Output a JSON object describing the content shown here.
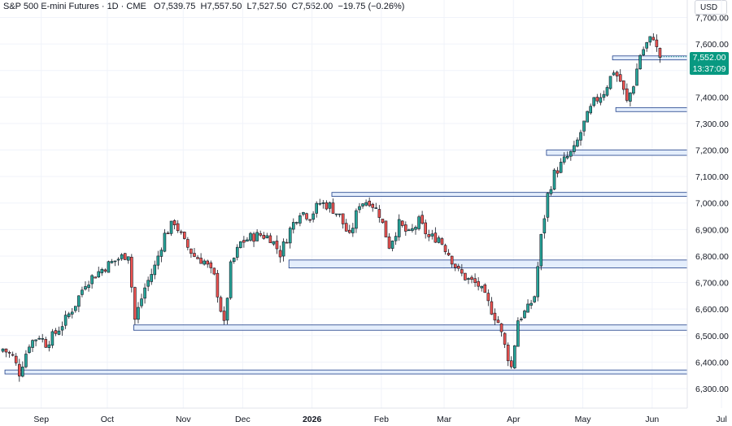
{
  "header": {
    "symbol": "S&P 500 E-mini Futures · 1D · CME",
    "open_key": "O",
    "open": "7,539.75",
    "high_key": "H",
    "high": "7,557.50",
    "low_key": "L",
    "low": "7,527.50",
    "close_key": "C",
    "close": "7,552.00",
    "change": "−19.75 (−0.26%)"
  },
  "currency": "USD",
  "last_price": {
    "value": "7,552.00",
    "countdown": "13:37:09"
  },
  "colors": {
    "up": "#089981",
    "up_body": "#089981",
    "down": "#f23645",
    "candle_up_fill": "#26a69a",
    "candle_down_fill": "#ef5350",
    "zone_fill": "#dbe8fb",
    "zone_stroke": "#1e3f8a",
    "grid": "#f0f3fa"
  },
  "chart_data": {
    "type": "candlestick",
    "ylim": [
      6260,
      7720
    ],
    "yticks": [
      6300,
      6400,
      6500,
      6600,
      6700,
      6800,
      6900,
      7000,
      7100,
      7200,
      7300,
      7400,
      7500,
      7600,
      7700
    ],
    "ytick_labels": [
      "6,300.00",
      "6,400.00",
      "6,500.00",
      "6,600.00",
      "6,700.00",
      "6,800.00",
      "6,900.00",
      "7,000.00",
      "7,100.00",
      "7,200.00",
      "7,300.00",
      "7,400.00",
      "7,500.00",
      "7,600.00",
      "7,700.00"
    ],
    "xticks": [
      {
        "label": "Sep",
        "bar": 12,
        "bold": false
      },
      {
        "label": "Oct",
        "bar": 32,
        "bold": false
      },
      {
        "label": "Nov",
        "bar": 55,
        "bold": false
      },
      {
        "label": "Dec",
        "bar": 73,
        "bold": false
      },
      {
        "label": "2026",
        "bar": 94,
        "bold": true
      },
      {
        "label": "Feb",
        "bar": 115,
        "bold": false
      },
      {
        "label": "Mar",
        "bar": 134,
        "bold": false
      },
      {
        "label": "Apr",
        "bar": 155,
        "bold": false
      },
      {
        "label": "May",
        "bar": 176,
        "bold": false
      },
      {
        "label": "Jun",
        "bar": 197,
        "bold": false
      },
      {
        "label": "Jul",
        "bar": 218,
        "bold": false
      }
    ],
    "bar_count_span": 220,
    "anchors": [
      [
        0,
        6450
      ],
      [
        3,
        6420
      ],
      [
        5,
        6360
      ],
      [
        8,
        6470
      ],
      [
        11,
        6500
      ],
      [
        13,
        6470
      ],
      [
        16,
        6510
      ],
      [
        19,
        6560
      ],
      [
        22,
        6620
      ],
      [
        25,
        6700
      ],
      [
        28,
        6730
      ],
      [
        31,
        6760
      ],
      [
        35,
        6790
      ],
      [
        38,
        6810
      ],
      [
        40,
        6560
      ],
      [
        43,
        6680
      ],
      [
        46,
        6760
      ],
      [
        49,
        6880
      ],
      [
        52,
        6930
      ],
      [
        55,
        6850
      ],
      [
        58,
        6800
      ],
      [
        61,
        6780
      ],
      [
        64,
        6720
      ],
      [
        67,
        6540
      ],
      [
        69,
        6760
      ],
      [
        72,
        6850
      ],
      [
        75,
        6870
      ],
      [
        78,
        6880
      ],
      [
        81,
        6870
      ],
      [
        84,
        6810
      ],
      [
        87,
        6900
      ],
      [
        90,
        6970
      ],
      [
        93,
        6950
      ],
      [
        96,
        7000
      ],
      [
        99,
        6990
      ],
      [
        102,
        6950
      ],
      [
        105,
        6870
      ],
      [
        108,
        7000
      ],
      [
        111,
        7010
      ],
      [
        114,
        6960
      ],
      [
        117,
        6840
      ],
      [
        120,
        6920
      ],
      [
        123,
        6880
      ],
      [
        126,
        6930
      ],
      [
        129,
        6870
      ],
      [
        132,
        6870
      ],
      [
        135,
        6810
      ],
      [
        138,
        6740
      ],
      [
        141,
        6710
      ],
      [
        144,
        6690
      ],
      [
        147,
        6620
      ],
      [
        150,
        6550
      ],
      [
        152,
        6460
      ],
      [
        154,
        6380
      ],
      [
        156,
        6560
      ],
      [
        159,
        6600
      ],
      [
        161,
        6650
      ],
      [
        163,
        6870
      ],
      [
        165,
        7030
      ],
      [
        167,
        7110
      ],
      [
        170,
        7160
      ],
      [
        173,
        7200
      ],
      [
        176,
        7300
      ],
      [
        179,
        7380
      ],
      [
        182,
        7420
      ],
      [
        185,
        7500
      ],
      [
        187,
        7460
      ],
      [
        189,
        7380
      ],
      [
        191,
        7450
      ],
      [
        193,
        7560
      ],
      [
        195,
        7600
      ],
      [
        197,
        7630
      ],
      [
        198,
        7580
      ],
      [
        199,
        7552
      ]
    ],
    "zones": [
      {
        "from_bar": 1,
        "to_bar": 220,
        "top": 6370,
        "bottom": 6355
      },
      {
        "from_bar": 40,
        "to_bar": 220,
        "top": 6540,
        "bottom": 6520
      },
      {
        "from_bar": 87,
        "to_bar": 220,
        "top": 6785,
        "bottom": 6755
      },
      {
        "from_bar": 100,
        "to_bar": 220,
        "top": 7040,
        "bottom": 7025
      },
      {
        "from_bar": 165,
        "to_bar": 220,
        "top": 7200,
        "bottom": 7180
      },
      {
        "from_bar": 186,
        "to_bar": 220,
        "top": 7360,
        "bottom": 7345
      },
      {
        "from_bar": 185,
        "to_bar": 220,
        "top": 7555,
        "bottom": 7540
      }
    ],
    "last_close": 7552
  }
}
